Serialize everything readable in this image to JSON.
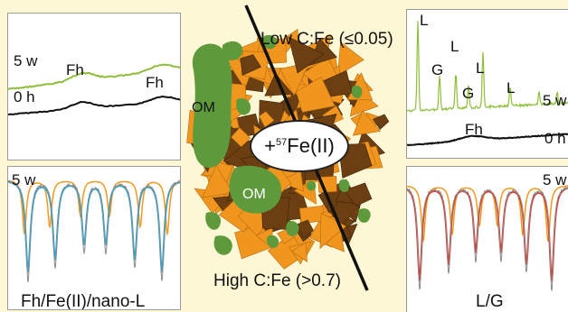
{
  "colors": {
    "background": "#fdf7d6",
    "green_spectrum": "#8fbf3a",
    "black_spectrum": "#111111",
    "blue_fit": "#2aa9d8",
    "orange_fit": "#f29a1f",
    "red_fit": "#e0362d",
    "gray_data": "#8a8a8a",
    "mineral_orange": "#f0961e",
    "mineral_brown": "#6b3f12",
    "organic_green": "#5e9a3c"
  },
  "top_left": {
    "label_5w": "5 w",
    "label_0h": "0 h",
    "peak_fh_1": "Fh",
    "peak_fh_2": "Fh"
  },
  "top_right": {
    "peak_labels": [
      "L",
      "G",
      "L",
      "G",
      "L",
      "L"
    ],
    "label_5w": "5 w",
    "label_fh": "Fh",
    "label_0h": "0 h"
  },
  "bottom_left": {
    "label_5w": "5 w",
    "fit_label": "Fh/Fe(II)/nano-L"
  },
  "bottom_right": {
    "label_5w": "5 w",
    "fit_label": "L/G"
  },
  "center": {
    "low_label": "Low C:Fe (≤0.05)",
    "high_label": "High C:Fe (>0.7)",
    "om_label_1": "OM",
    "om_label_2": "OM",
    "addition_prefix": "+",
    "addition_isotope": "57",
    "addition_species": "Fe(II)"
  }
}
